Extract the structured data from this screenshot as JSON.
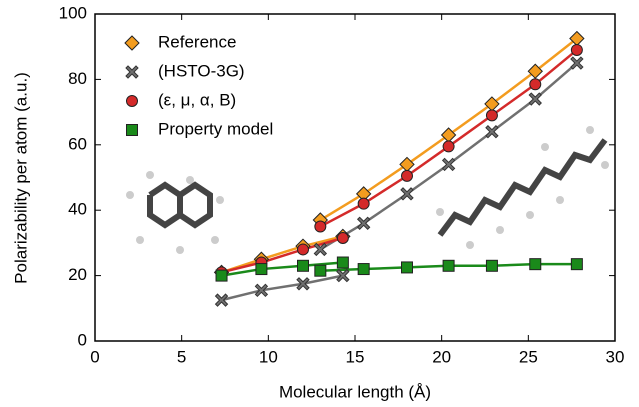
{
  "chart_data": {
    "type": "line",
    "x_label": "Molecular length (Å)",
    "y_label": "Polarizability per atom (a.u.)",
    "x": [
      7.3,
      9.6,
      12.0,
      14.3,
      null,
      13.0,
      15.5,
      18.0,
      20.4,
      22.9,
      25.4,
      27.8
    ],
    "series": [
      {
        "name": "Reference",
        "color": "#f39c1f",
        "marker": "diamond",
        "values": [
          21,
          25,
          29,
          32,
          null,
          37,
          45,
          54,
          63,
          72.5,
          82.5,
          92.5
        ]
      },
      {
        "name": "(HSTO-3G)",
        "color": "#707070",
        "marker": "cross",
        "values": [
          12.5,
          15.5,
          17.5,
          20,
          null,
          28,
          36,
          45,
          54,
          64,
          74,
          85
        ]
      },
      {
        "name": "(ε, μ, α, B)",
        "color": "#d42a2a",
        "marker": "circle",
        "values": [
          21,
          24,
          28,
          31.5,
          null,
          35,
          42,
          50.5,
          59.5,
          69,
          78.5,
          89
        ]
      },
      {
        "name": "Property model",
        "color": "#1a8a1a",
        "marker": "square",
        "values": [
          20,
          22,
          23,
          24,
          null,
          21.5,
          22,
          22.5,
          23,
          23,
          23.5,
          23.5
        ]
      }
    ],
    "xlim": [
      0,
      30
    ],
    "xticks": [
      0,
      5,
      10,
      15,
      20,
      25,
      30
    ],
    "ylim": [
      0,
      100
    ],
    "yticks": [
      0,
      20,
      40,
      60,
      80,
      100
    ]
  }
}
